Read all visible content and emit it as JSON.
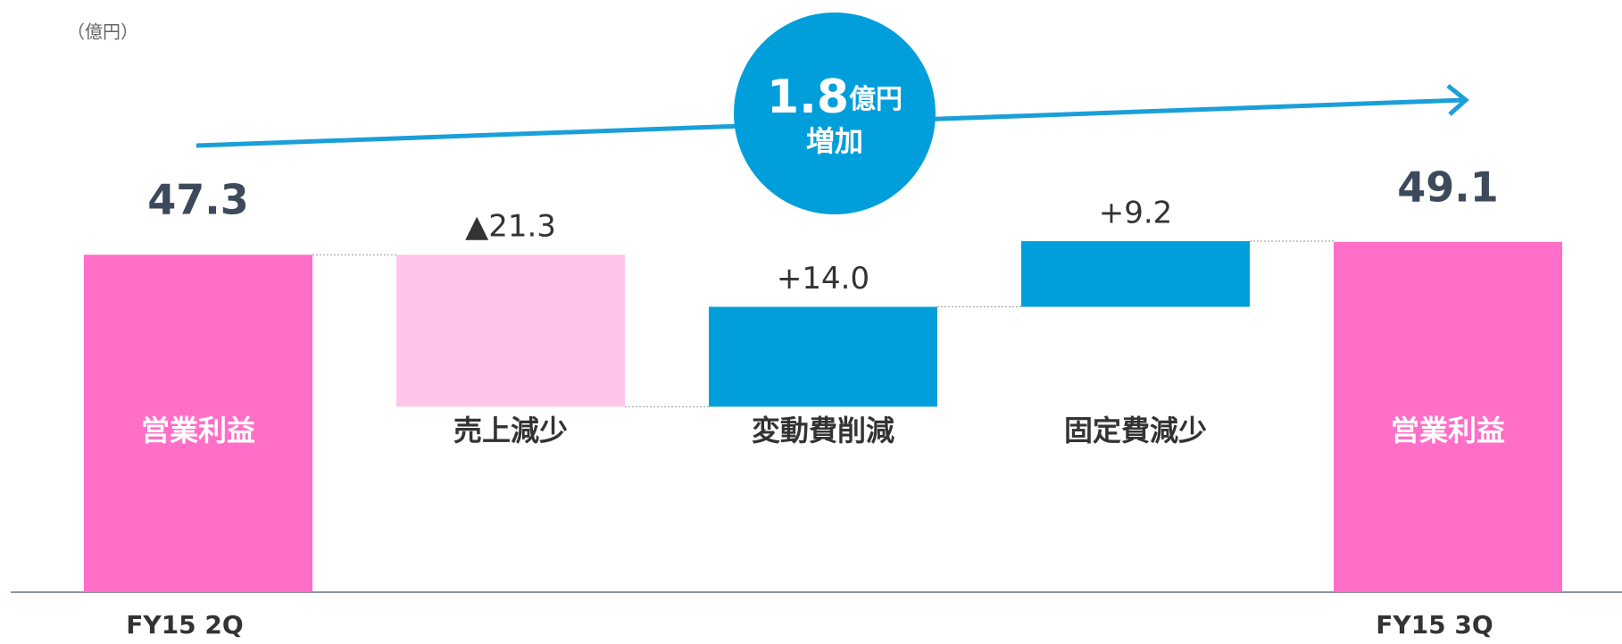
{
  "chart_data": {
    "type": "waterfall",
    "unit_label": "（億円）",
    "categories": [
      "FY15 2Q",
      null,
      null,
      null,
      "FY15 3Q"
    ],
    "bar_labels": [
      "営業利益",
      "売上減少",
      "変動費削減",
      "固定費減少",
      "営業利益"
    ],
    "kinds": [
      "total",
      "change",
      "change",
      "change",
      "total"
    ],
    "values": [
      47.3,
      -21.3,
      14.0,
      9.2,
      49.1
    ],
    "value_labels": [
      "47.3",
      "▲21.3",
      "+14.0",
      "+9.2",
      "49.1"
    ],
    "colors": {
      "total": "#ff6ec7",
      "decrease": "#fdc5e8",
      "increase": "#009fdb"
    },
    "annotation": {
      "value": 1.8,
      "unit": "億円",
      "text": "増加"
    },
    "ylim": [
      0,
      78
    ]
  }
}
